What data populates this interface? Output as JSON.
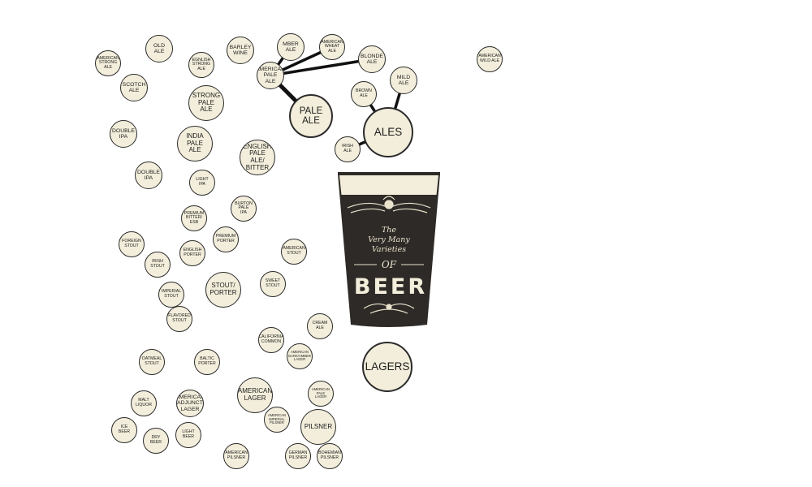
{
  "colors": {
    "node_fill": "#f3eedb",
    "node_stroke": "#2b2b2b",
    "link": "#111111",
    "glass_body": "#2e2a27",
    "glass_foam": "#f3eedb",
    "glass_text": "#e9e2cc"
  },
  "glass": {
    "line1": "The",
    "line2": "Very Many",
    "line3": "Varieties",
    "line4": "OF",
    "line5": "BEER"
  },
  "nodes": [
    {
      "id": "ales",
      "label": "ALES",
      "size": "xl"
    },
    {
      "id": "lagers",
      "label": "LAGERS",
      "size": "xl"
    },
    {
      "id": "pale-ale",
      "label": "PALE\nALE",
      "size": "l"
    },
    {
      "id": "stout-porter",
      "label": "STOUT/\nPORTER",
      "size": "m"
    },
    {
      "id": "pilsner",
      "label": "PILSNER",
      "size": "m"
    },
    {
      "id": "american-lager",
      "label": "AMERICAN\nLAGER",
      "size": "m"
    },
    {
      "id": "india-pale-ale",
      "label": "INDIA\nPALE\nALE",
      "size": "m"
    },
    {
      "id": "strong-pale-ale",
      "label": "STRONG\nPALE\nALE",
      "size": "m"
    },
    {
      "id": "american-pale-ale",
      "label": "AMERICAN\nPALE\nALE",
      "size": "s"
    },
    {
      "id": "amber-ale",
      "label": "MBER\nALE",
      "size": "s"
    },
    {
      "id": "american-wheat-ale",
      "label": "AMERICAN\nWHEAT\nALE",
      "size": "xs"
    },
    {
      "id": "blonde-ale",
      "label": "BLONDE\nALE",
      "size": "s"
    },
    {
      "id": "mild-ale",
      "label": "MILD\nALE",
      "size": "s"
    },
    {
      "id": "brown-ale",
      "label": "BROWN\nALE",
      "size": "xs"
    },
    {
      "id": "irish-ale",
      "label": "IRISH\nALE",
      "size": "xs"
    },
    {
      "id": "american-wild-ale",
      "label": "AMERICAN\nWILD ALE",
      "size": "xs"
    },
    {
      "id": "american-strong-ale",
      "label": "AMERICAN\nSTRONG ALE",
      "size": "xs"
    },
    {
      "id": "old-ale",
      "label": "OLD\nALE",
      "size": "s"
    },
    {
      "id": "english-strong-ale",
      "label": "EGNLISH\nSTRONG\nALE",
      "size": "xs"
    },
    {
      "id": "barley-wine",
      "label": "BARLEY\nWINE",
      "size": "s"
    },
    {
      "id": "scotch-ale",
      "label": "SCOTCH\nALE",
      "size": "s"
    },
    {
      "id": "double-ipa-1",
      "label": "DOUBLE\nIPA",
      "size": "s"
    },
    {
      "id": "english-pale-ale",
      "label": "ENGLISH\nPALE ALE/\nBITTER",
      "size": "m"
    },
    {
      "id": "double-ipa-2",
      "label": "DOUBLE\nIPA",
      "size": "s"
    },
    {
      "id": "light-ipa",
      "label": "LIGHT\nIPA",
      "size": "xs"
    },
    {
      "id": "burton-pale-ipa",
      "label": "BURTON\nPALE\nIPA",
      "size": "xs"
    },
    {
      "id": "premium-bitter",
      "label": "PREMIUM\nBITTER/\nESB",
      "size": "xs"
    },
    {
      "id": "premium-porter",
      "label": "PREMIUM\nPORTER",
      "size": "xs"
    },
    {
      "id": "foreign-stout",
      "label": "FOREIGN\nSTOUT",
      "size": "xs"
    },
    {
      "id": "english-porter",
      "label": "ENGLISH\nPORTER",
      "size": "xs"
    },
    {
      "id": "american-stout",
      "label": "AMERICAN\nSTOUT",
      "size": "xs"
    },
    {
      "id": "irish-stout",
      "label": "IRISH\nSTOUT",
      "size": "xs"
    },
    {
      "id": "sweet-stout",
      "label": "SWEET\nSTOUT",
      "size": "xs"
    },
    {
      "id": "imperial-stout",
      "label": "IMPERIAL\nSTOUT",
      "size": "xs"
    },
    {
      "id": "flavored-stout",
      "label": "FLAVORED\nSTOUT",
      "size": "xs"
    },
    {
      "id": "cream-ale",
      "label": "CREAM\nALE",
      "size": "xs"
    },
    {
      "id": "california-common",
      "label": "CALIFORNIA\nCOMMON",
      "size": "xs"
    },
    {
      "id": "american-dark-amber-lager",
      "label": "AMERICAN\nDARK/AMBER\nLAGER",
      "size": "xxs"
    },
    {
      "id": "oatmeal-stout",
      "label": "OATMEAL\nSTOUT",
      "size": "xs"
    },
    {
      "id": "baltic-porter",
      "label": "BALTIC\nPORTER",
      "size": "xs"
    },
    {
      "id": "american-pale-lager",
      "label": "AMERICAN\nPALE\nLAGER",
      "size": "xxs"
    },
    {
      "id": "malt-liquor",
      "label": "MALT\nLIQUOR",
      "size": "xs"
    },
    {
      "id": "american-adjunct-lager",
      "label": "AMERICAN\nADJUNCT\nLAGER",
      "size": "s"
    },
    {
      "id": "american-imperial-pilsner",
      "label": "AMERICAN\nIMPERIAL\nPILSNER",
      "size": "xxs"
    },
    {
      "id": "ice-beer",
      "label": "ICE\nBEER",
      "size": "xs"
    },
    {
      "id": "dry-beer",
      "label": "DRY\nBEER",
      "size": "xs"
    },
    {
      "id": "light-beer",
      "label": "LIGHT\nBEER",
      "size": "xs"
    },
    {
      "id": "american-pilsner",
      "label": "AMERICAN\nPILSNER",
      "size": "xs"
    },
    {
      "id": "german-pilsner",
      "label": "GERMAN\nPILSNER",
      "size": "xs"
    },
    {
      "id": "bohemian-pilsner",
      "label": "BOHEMIAN\nPILSNER",
      "size": "xs"
    }
  ],
  "links": [
    {
      "from": "american-pale-ale",
      "to": "amber-ale",
      "weight": "medium"
    },
    {
      "from": "american-pale-ale",
      "to": "american-wheat-ale",
      "weight": "medium"
    },
    {
      "from": "american-pale-ale",
      "to": "blonde-ale",
      "weight": "medium"
    },
    {
      "from": "american-pale-ale",
      "to": "pale-ale",
      "weight": "heavy"
    },
    {
      "from": "brown-ale",
      "to": "ales",
      "weight": "medium"
    },
    {
      "from": "mild-ale",
      "to": "ales",
      "weight": "medium"
    },
    {
      "from": "irish-ale",
      "to": "ales",
      "weight": "medium"
    }
  ]
}
